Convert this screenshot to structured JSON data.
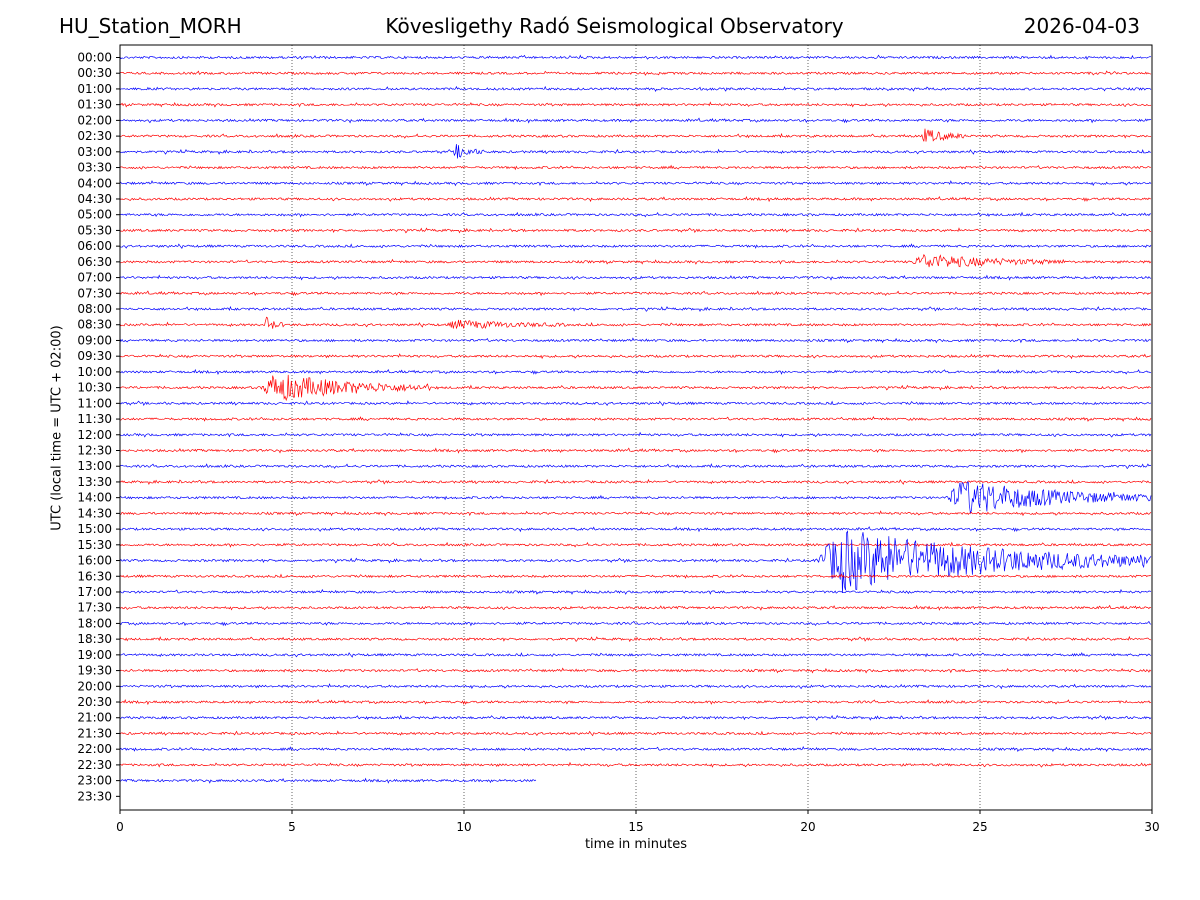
{
  "header": {
    "station": "HU_Station_MORH",
    "observatory": "Kövesligethy Radó Seismological Observatory",
    "date": "2026-04-03"
  },
  "chart_data": {
    "type": "line",
    "title": "Kövesligethy Radó Seismological Observatory",
    "xlabel": "time in minutes",
    "ylabel": "UTC (local time = UTC + 02:00)",
    "xlim": [
      0,
      30
    ],
    "x_ticks": [
      "0",
      "5",
      "10",
      "15",
      "20",
      "25",
      "30"
    ],
    "y_ticks": [
      "00:00",
      "00:30",
      "01:00",
      "01:30",
      "02:00",
      "02:30",
      "03:00",
      "03:30",
      "04:00",
      "04:30",
      "05:00",
      "05:30",
      "06:00",
      "06:30",
      "07:00",
      "07:30",
      "08:00",
      "08:30",
      "09:00",
      "09:30",
      "10:00",
      "10:30",
      "11:00",
      "11:30",
      "12:00",
      "12:30",
      "13:00",
      "13:30",
      "14:00",
      "14:30",
      "15:00",
      "15:30",
      "16:00",
      "16:30",
      "17:00",
      "17:30",
      "18:00",
      "18:30",
      "19:00",
      "19:30",
      "20:00",
      "20:30",
      "21:00",
      "21:30",
      "22:00",
      "22:30",
      "23:00",
      "23:30"
    ],
    "grid": "vertical dotted",
    "series_colors": [
      "#0000ff",
      "#ff0000"
    ],
    "trace_end_minutes": {
      "23:00": 12.1
    },
    "events": [
      {
        "row": "02:30",
        "start_min": 23.3,
        "end_min": 24.6,
        "amplitude": 1.0
      },
      {
        "row": "03:00",
        "start_min": 9.7,
        "end_min": 10.6,
        "amplitude": 1.0
      },
      {
        "row": "06:30",
        "start_min": 23.0,
        "end_min": 27.5,
        "amplitude": 1.0
      },
      {
        "row": "08:30",
        "start_min": 4.2,
        "end_min": 4.8,
        "amplitude": 1.0
      },
      {
        "row": "08:30",
        "start_min": 9.5,
        "end_min": 13.0,
        "amplitude": 0.6
      },
      {
        "row": "10:30",
        "start_min": 4.1,
        "end_min": 9.0,
        "amplitude": 2.0
      },
      {
        "row": "14:00",
        "start_min": 24.0,
        "end_min": 30.0,
        "amplitude": 2.5
      },
      {
        "row": "16:00",
        "start_min": 20.2,
        "end_min": 30.0,
        "amplitude": 4.5
      }
    ]
  }
}
